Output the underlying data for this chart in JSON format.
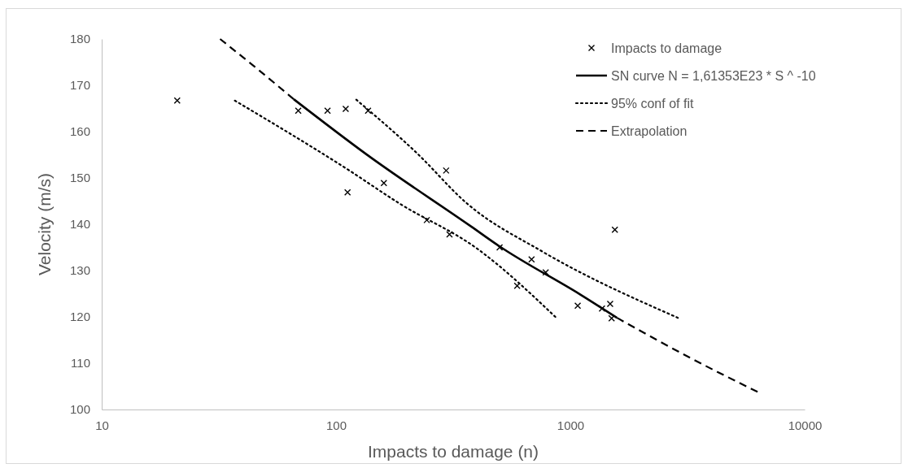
{
  "chart_data": {
    "type": "scatter",
    "xlabel": "Impacts to damage (n)",
    "ylabel": "Velocity (m/s)",
    "log": "x",
    "xlim": [
      10,
      10000
    ],
    "xticks": [
      10,
      100,
      1000,
      10000
    ],
    "ylim": [
      100,
      180
    ],
    "yticks": [
      100,
      110,
      120,
      130,
      140,
      150,
      160,
      170,
      180
    ],
    "grid": false,
    "legend": "top right",
    "series": [
      {
        "name": "Impacts to damage",
        "type": "scatter",
        "marker": "cross",
        "color": "#000000",
        "x": [
          21,
          69,
          92,
          110,
          137,
          295,
          160,
          112,
          244,
          305,
          499,
          683,
          785,
          593,
          1549,
          1075,
          1365,
          1479,
          1500
        ],
        "values": [
          166.7,
          164.5,
          164.5,
          164.9,
          164.5,
          151.6,
          148.9,
          146.9,
          140.9,
          137.8,
          135.0,
          132.4,
          129.6,
          126.7,
          138.8,
          122.4,
          121.8,
          122.8,
          119.7
        ]
      },
      {
        "name": "SN curve N = 1,61353E23 * S ^ -10",
        "type": "line",
        "line_style": "solid",
        "color": "#000000",
        "x": [
          66,
          134,
          380,
          496,
          1104,
          1581
        ],
        "values": [
          167.0,
          155.2,
          139.4,
          135.3,
          124.8,
          119.8
        ]
      },
      {
        "name": "95% conf of fit",
        "type": "line",
        "line_style": "dotted",
        "color": "#000000",
        "x": [
          122,
          223,
          360,
          760,
          2877
        ],
        "values": [
          166.9,
          155.2,
          144.6,
          134.1,
          119.8
        ]
      },
      {
        "name": "Extrapolation",
        "type": "line",
        "line_style": "dashed",
        "color": "#000000",
        "x": [
          32,
          46,
          66
        ],
        "values": [
          180.0,
          173.6,
          167.0
        ]
      },
      {
        "type": "line",
        "line_style": "dotted",
        "color": "#000000",
        "x": [
          37,
          114,
          185,
          401,
          863
        ],
        "values": [
          166.7,
          151.6,
          144.6,
          134.7,
          120.0
        ]
      },
      {
        "type": "line",
        "line_style": "dashed",
        "color": "#000000",
        "x": [
          1581,
          3289,
          6295
        ],
        "values": [
          119.8,
          111.0,
          103.8
        ]
      }
    ]
  }
}
